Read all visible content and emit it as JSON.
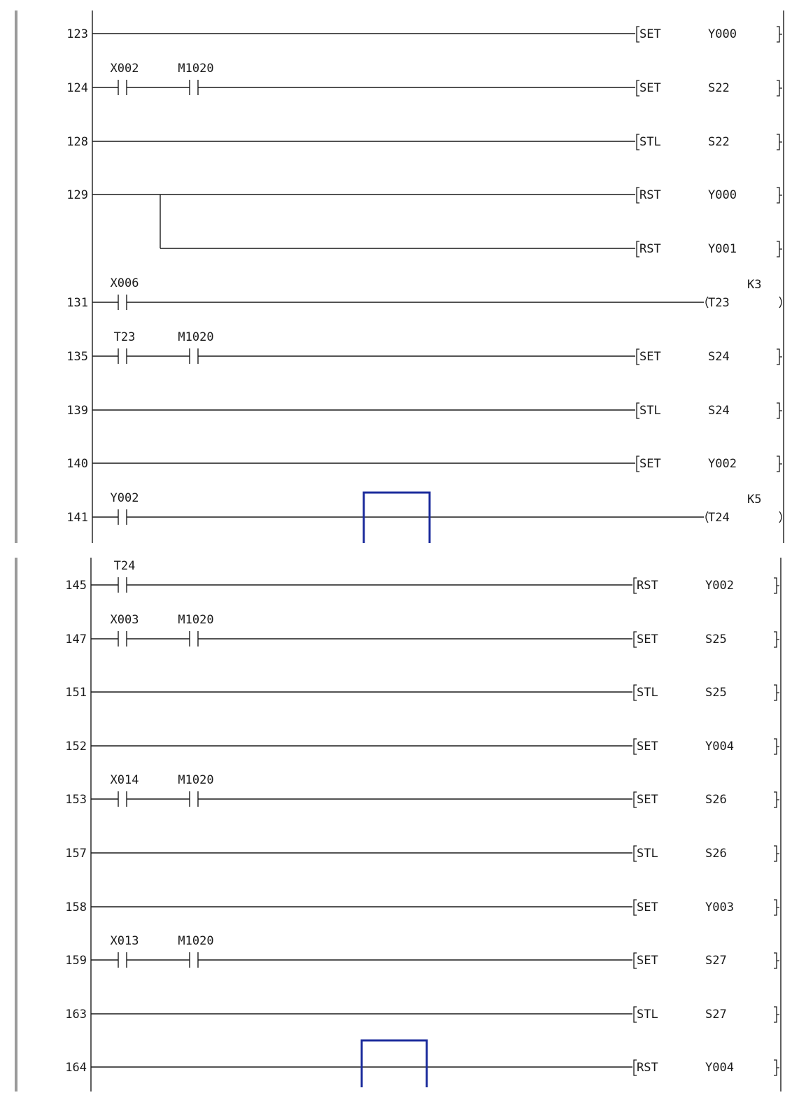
{
  "panels": [
    {
      "rungs": [
        {
          "step": "123",
          "contacts": [],
          "instr": "SET",
          "operand": "Y000",
          "kind": "bracket"
        },
        {
          "step": "124",
          "contacts": [
            "X002",
            "M1020"
          ],
          "instr": "SET",
          "operand": "S22",
          "kind": "bracket"
        },
        {
          "step": "128",
          "contacts": [],
          "instr": "STL",
          "operand": "S22",
          "kind": "bracket"
        },
        {
          "step": "129",
          "contacts": [],
          "instr": "RST",
          "operand": "Y000",
          "kind": "bracket"
        },
        {
          "step": "",
          "contacts": [],
          "instr": "RST",
          "operand": "Y001",
          "kind": "bracket",
          "branch": true
        },
        {
          "step": "131",
          "contacts": [
            "X006"
          ],
          "instr": "T23",
          "operand": "K3",
          "kind": "coil"
        },
        {
          "step": "135",
          "contacts": [
            "T23",
            "M1020"
          ],
          "instr": "SET",
          "operand": "S24",
          "kind": "bracket"
        },
        {
          "step": "139",
          "contacts": [],
          "instr": "STL",
          "operand": "S24",
          "kind": "bracket"
        },
        {
          "step": "140",
          "contacts": [],
          "instr": "SET",
          "operand": "Y002",
          "kind": "bracket"
        },
        {
          "step": "141",
          "contacts": [
            "Y002"
          ],
          "instr": "T24",
          "operand": "K5",
          "kind": "coil"
        }
      ]
    },
    {
      "rungs": [
        {
          "step": "145",
          "contacts": [
            "T24"
          ],
          "instr": "RST",
          "operand": "Y002",
          "kind": "bracket"
        },
        {
          "step": "147",
          "contacts": [
            "X003",
            "M1020"
          ],
          "instr": "SET",
          "operand": "S25",
          "kind": "bracket"
        },
        {
          "step": "151",
          "contacts": [],
          "instr": "STL",
          "operand": "S25",
          "kind": "bracket"
        },
        {
          "step": "152",
          "contacts": [],
          "instr": "SET",
          "operand": "Y004",
          "kind": "bracket"
        },
        {
          "step": "153",
          "contacts": [
            "X014",
            "M1020"
          ],
          "instr": "SET",
          "operand": "S26",
          "kind": "bracket"
        },
        {
          "step": "157",
          "contacts": [],
          "instr": "STL",
          "operand": "S26",
          "kind": "bracket"
        },
        {
          "step": "158",
          "contacts": [],
          "instr": "SET",
          "operand": "Y003",
          "kind": "bracket"
        },
        {
          "step": "159",
          "contacts": [
            "X013",
            "M1020"
          ],
          "instr": "SET",
          "operand": "S27",
          "kind": "bracket"
        },
        {
          "step": "163",
          "contacts": [],
          "instr": "STL",
          "operand": "S27",
          "kind": "bracket"
        },
        {
          "step": "164",
          "contacts": [],
          "instr": "RST",
          "operand": "Y004",
          "kind": "bracket"
        }
      ]
    }
  ],
  "colors": {
    "line": "#1a1a1a",
    "margin_bar": "#9a9a9a",
    "highlight": "#1c2c9c"
  }
}
